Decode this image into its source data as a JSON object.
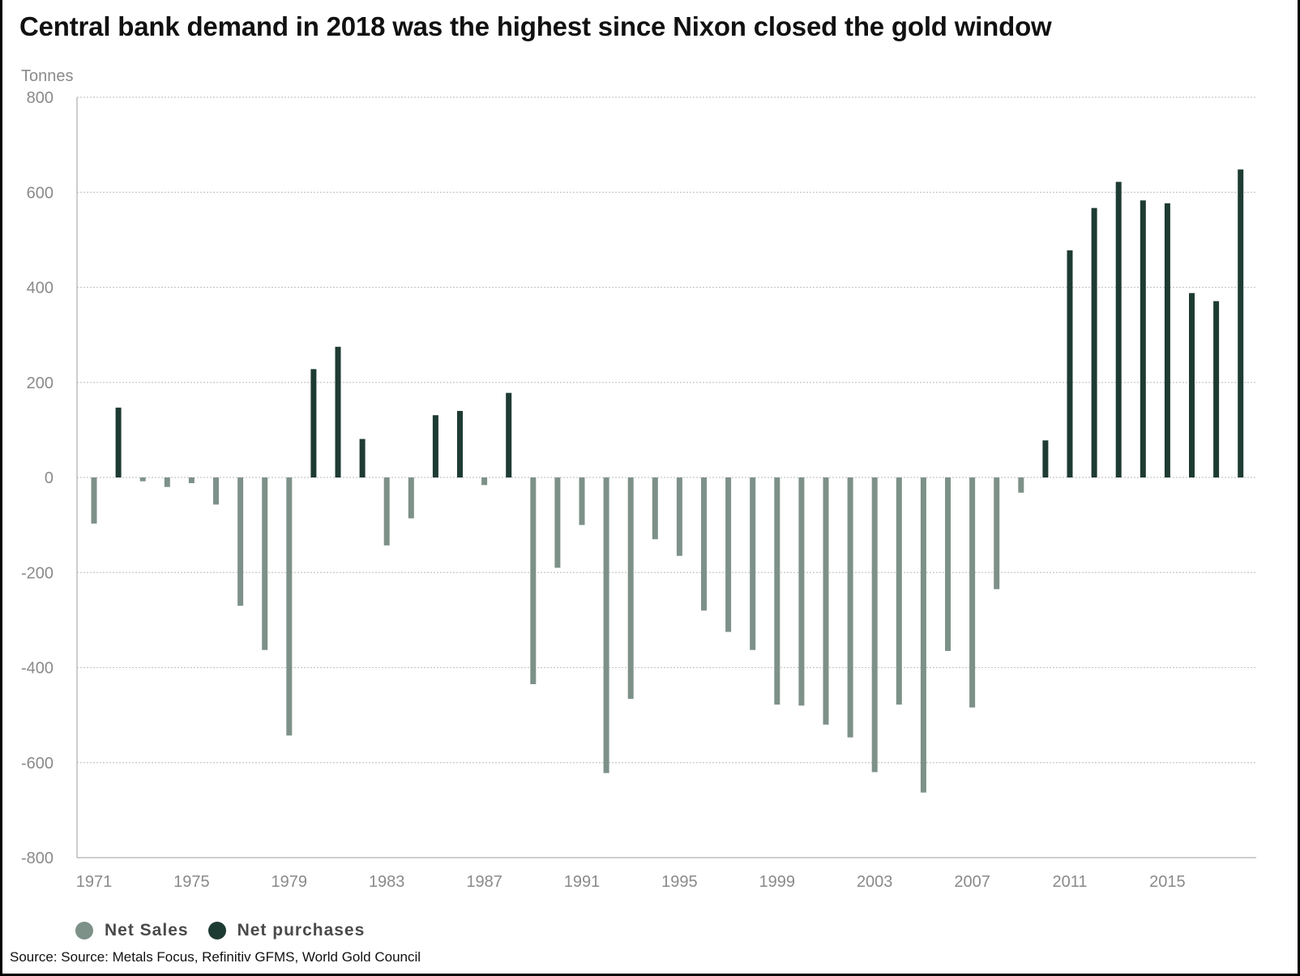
{
  "title": "Central bank demand in 2018 was the highest since Nixon closed the gold window",
  "source": "Source: Source: Metals Focus, Refinitiv GFMS, World Gold Council",
  "colors": {
    "net_sales": "#7d9188",
    "net_purchases": "#1e3b33",
    "grid": "#c8c8c8",
    "axis_text": "#8a8a8a"
  },
  "chart_data": {
    "type": "bar",
    "title": "Central bank demand in 2018 was the highest since Nixon closed the gold window",
    "ylabel": "Tonnes",
    "xlabel": "",
    "ylim": [
      -800,
      800
    ],
    "yticks": [
      800,
      600,
      400,
      200,
      0,
      -200,
      -400,
      -600,
      -800
    ],
    "xticks": [
      "1971",
      "1975",
      "1979",
      "1983",
      "1987",
      "1991",
      "1995",
      "1999",
      "2003",
      "2007",
      "2011",
      "2015"
    ],
    "grid": true,
    "legend_position": "bottom-left",
    "years": [
      1971,
      1972,
      1973,
      1974,
      1975,
      1976,
      1977,
      1978,
      1979,
      1980,
      1981,
      1982,
      1983,
      1984,
      1985,
      1986,
      1987,
      1988,
      1989,
      1990,
      1991,
      1992,
      1993,
      1994,
      1995,
      1996,
      1997,
      1998,
      1999,
      2000,
      2001,
      2002,
      2003,
      2004,
      2005,
      2006,
      2007,
      2008,
      2009,
      2010,
      2011,
      2012,
      2013,
      2014,
      2015,
      2016,
      2017,
      2018
    ],
    "series": [
      {
        "name": "Net Sales",
        "color": "#7d9188",
        "values": [
          -97,
          0,
          -8,
          -20,
          -12,
          -57,
          -270,
          -363,
          -543,
          0,
          0,
          0,
          -143,
          -86,
          0,
          0,
          -16,
          0,
          -435,
          -190,
          -100,
          -622,
          -466,
          -130,
          -165,
          -280,
          -325,
          -363,
          -478,
          -480,
          -520,
          -547,
          -620,
          -478,
          -663,
          -365,
          -484,
          -235,
          -32,
          0,
          0,
          0,
          0,
          0,
          0,
          0,
          0,
          0
        ]
      },
      {
        "name": "Net purchases",
        "color": "#1e3b33",
        "values": [
          0,
          147,
          0,
          0,
          0,
          0,
          0,
          0,
          0,
          228,
          275,
          81,
          0,
          0,
          131,
          140,
          0,
          178,
          0,
          0,
          0,
          0,
          0,
          0,
          0,
          0,
          0,
          0,
          0,
          0,
          0,
          0,
          0,
          0,
          0,
          0,
          0,
          0,
          0,
          78,
          478,
          567,
          622,
          583,
          577,
          388,
          371,
          648
        ]
      }
    ]
  }
}
